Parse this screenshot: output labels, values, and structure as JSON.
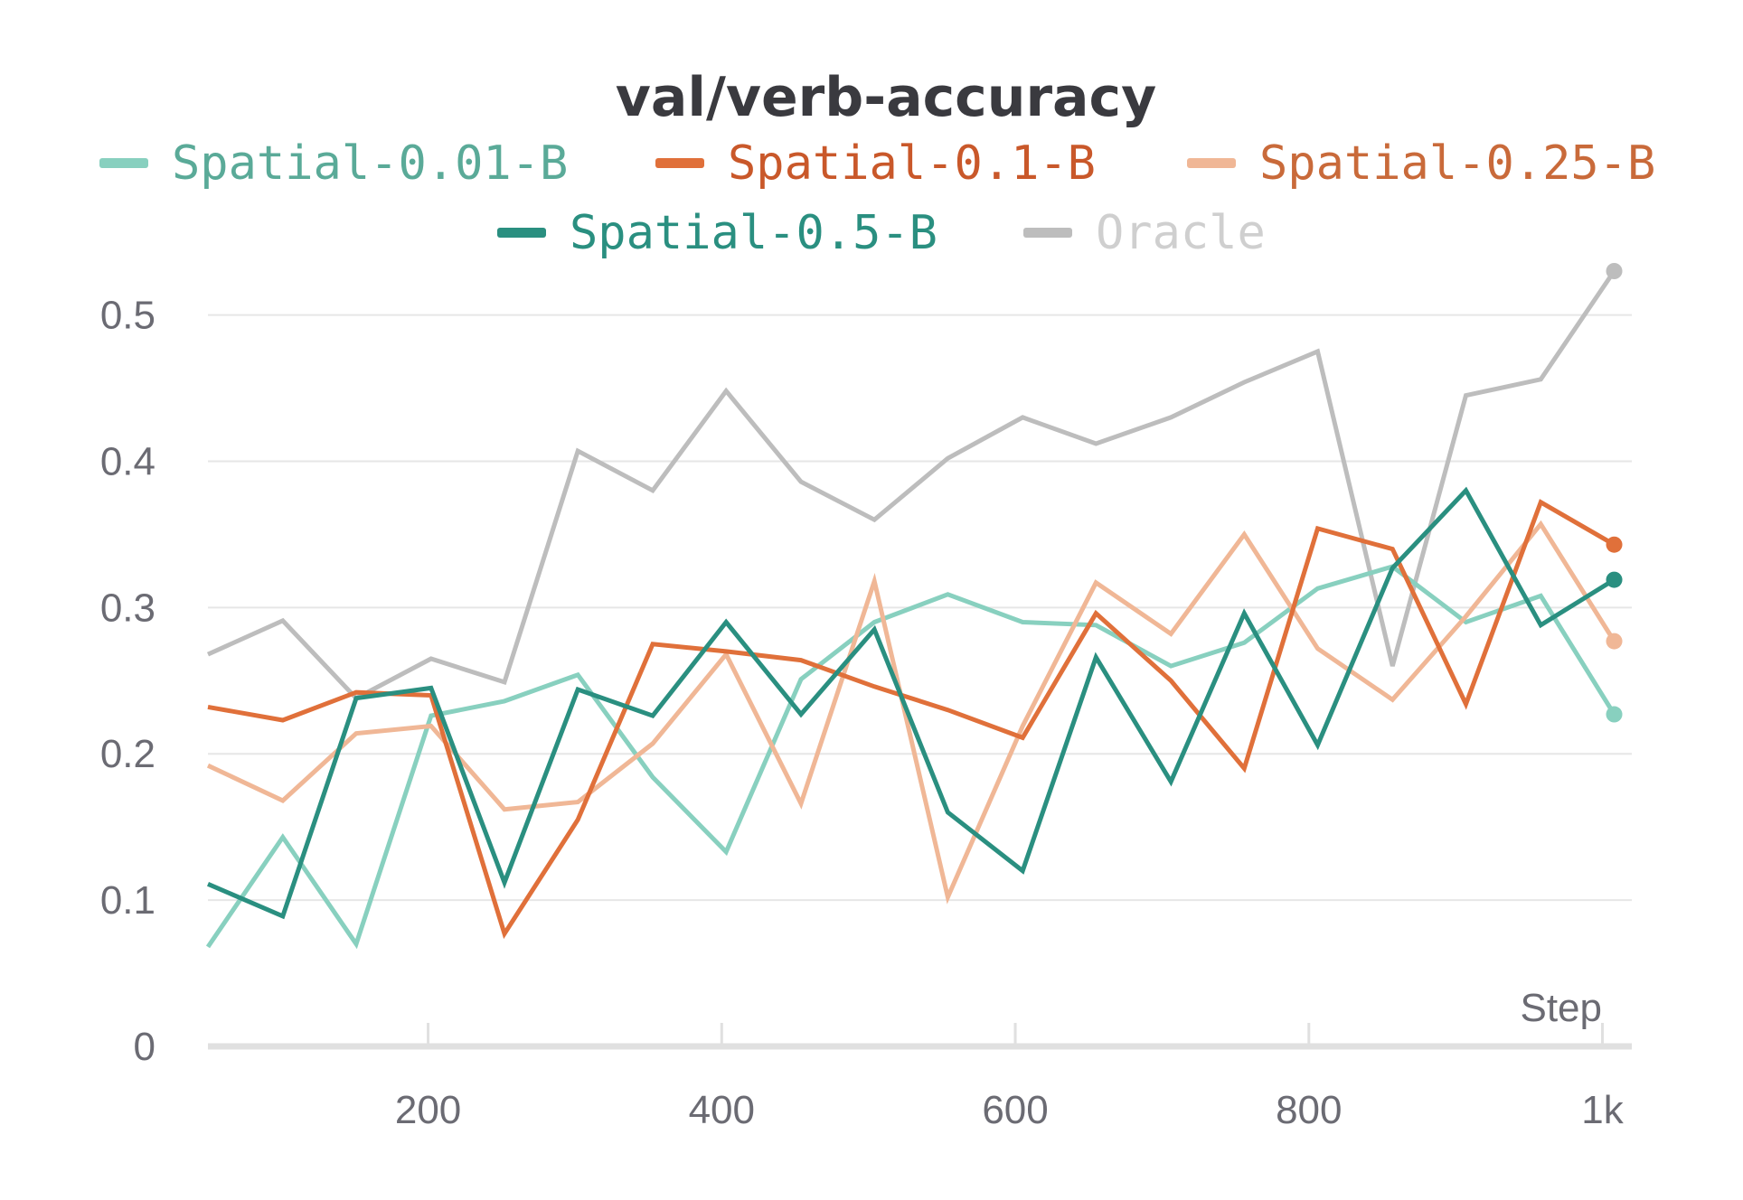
{
  "chart_data": {
    "type": "line",
    "title": "val/verb-accuracy",
    "xlabel": "Step",
    "ylabel": "",
    "xlim": [
      50,
      1020
    ],
    "ylim": [
      0,
      0.53
    ],
    "grid": true,
    "legend_position": "top",
    "x_ticks": [
      {
        "value": 200,
        "label": "200"
      },
      {
        "value": 400,
        "label": "400"
      },
      {
        "value": 600,
        "label": "600"
      },
      {
        "value": 800,
        "label": "800"
      },
      {
        "value": 1000,
        "label": "1k"
      }
    ],
    "y_ticks": [
      {
        "value": 0,
        "label": "0"
      },
      {
        "value": 0.1,
        "label": "0.1"
      },
      {
        "value": 0.2,
        "label": "0.2"
      },
      {
        "value": 0.3,
        "label": "0.3"
      },
      {
        "value": 0.4,
        "label": "0.4"
      },
      {
        "value": 0.5,
        "label": "0.5"
      }
    ],
    "x": [
      50,
      101,
      151,
      202,
      252,
      302,
      353,
      403,
      454,
      504,
      554,
      605,
      655,
      706,
      756,
      806,
      857,
      907,
      958,
      1008
    ],
    "series": [
      {
        "name": "Oracle",
        "color": "#bdbdbd",
        "legend_text_color": "#cfcfcf",
        "values": [
          0.268,
          0.291,
          0.238,
          0.265,
          0.249,
          0.407,
          0.38,
          0.448,
          0.386,
          0.36,
          0.402,
          0.43,
          0.412,
          0.43,
          0.454,
          0.475,
          0.26,
          0.445,
          0.456,
          0.53
        ]
      },
      {
        "name": "Spatial-0.01-B",
        "color": "#88d0bf",
        "legend_text_color": "#5aaa98",
        "values": [
          0.068,
          0.143,
          0.07,
          0.226,
          0.236,
          0.254,
          0.184,
          0.133,
          0.251,
          0.29,
          0.309,
          0.29,
          0.288,
          0.26,
          0.276,
          0.313,
          0.328,
          0.29,
          0.308,
          0.227
        ]
      },
      {
        "name": "Spatial-0.25-B",
        "color": "#f0b796",
        "legend_text_color": "#c96a3a",
        "values": [
          0.192,
          0.168,
          0.214,
          0.219,
          0.162,
          0.167,
          0.207,
          0.268,
          0.166,
          0.318,
          0.102,
          0.219,
          0.317,
          0.282,
          0.35,
          0.272,
          0.237,
          0.294,
          0.357,
          0.277
        ]
      },
      {
        "name": "Spatial-0.1-B",
        "color": "#e0703a",
        "legend_text_color": "#c9582a",
        "values": [
          0.232,
          0.223,
          0.242,
          0.24,
          0.077,
          0.155,
          0.275,
          0.27,
          0.264,
          0.246,
          0.23,
          0.211,
          0.296,
          0.25,
          0.19,
          0.354,
          0.34,
          0.234,
          0.372,
          0.343
        ]
      },
      {
        "name": "Spatial-0.5-B",
        "color": "#2a8f80",
        "legend_text_color": "#2a8f80",
        "values": [
          0.111,
          0.089,
          0.238,
          0.245,
          0.112,
          0.244,
          0.226,
          0.29,
          0.227,
          0.285,
          0.16,
          0.12,
          0.266,
          0.181,
          0.296,
          0.206,
          0.327,
          0.38,
          0.288,
          0.319
        ]
      }
    ],
    "legend": [
      {
        "name": "Spatial-0.01-B",
        "color": "#88d0bf",
        "text_color": "#5aaa98"
      },
      {
        "name": "Spatial-0.1-B",
        "color": "#e0703a",
        "text_color": "#c9582a"
      },
      {
        "name": "Spatial-0.25-B",
        "color": "#f0b796",
        "text_color": "#c96a3a"
      },
      {
        "name": "Spatial-0.5-B",
        "color": "#2a8f80",
        "text_color": "#2a8f80"
      },
      {
        "name": "Oracle",
        "color": "#bdbdbd",
        "text_color": "#cfcfcf"
      }
    ]
  }
}
